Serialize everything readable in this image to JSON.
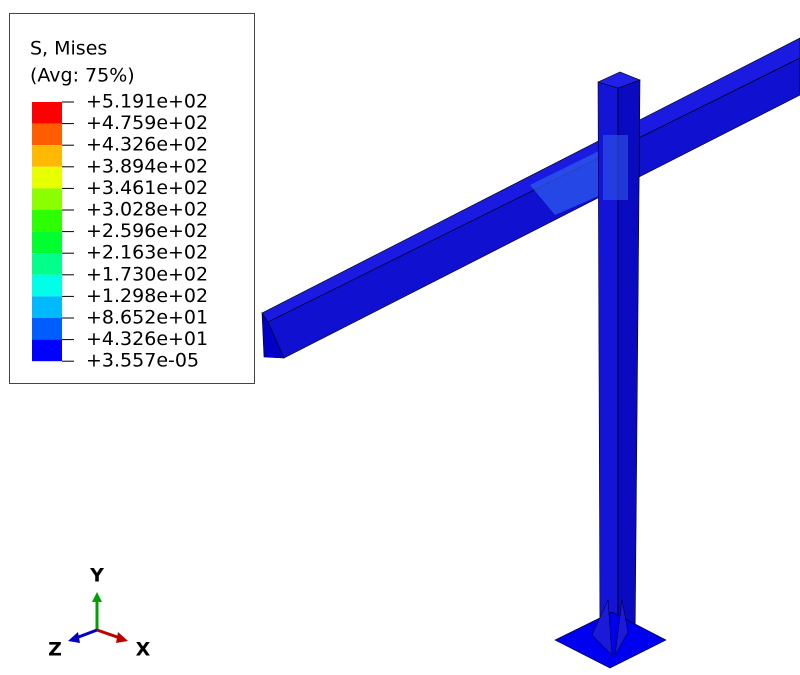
{
  "legend": {
    "title": "S, Mises",
    "subtitle": "(Avg: 75%)",
    "labels": [
      "+5.191e+02",
      "+4.759e+02",
      "+4.326e+02",
      "+3.894e+02",
      "+3.461e+02",
      "+3.028e+02",
      "+2.596e+02",
      "+2.163e+02",
      "+1.730e+02",
      "+1.298e+02",
      "+8.652e+01",
      "+4.326e+01",
      "+3.557e-05"
    ],
    "colors": [
      "#ff0000",
      "#ff5d00",
      "#ffb900",
      "#e8ff00",
      "#8bff00",
      "#2eff00",
      "#00ff2e",
      "#00ff8b",
      "#00ffe8",
      "#00b9ff",
      "#005dff",
      "#0000ff"
    ]
  },
  "triad": {
    "y": "Y",
    "z": "Z",
    "x": "X"
  }
}
